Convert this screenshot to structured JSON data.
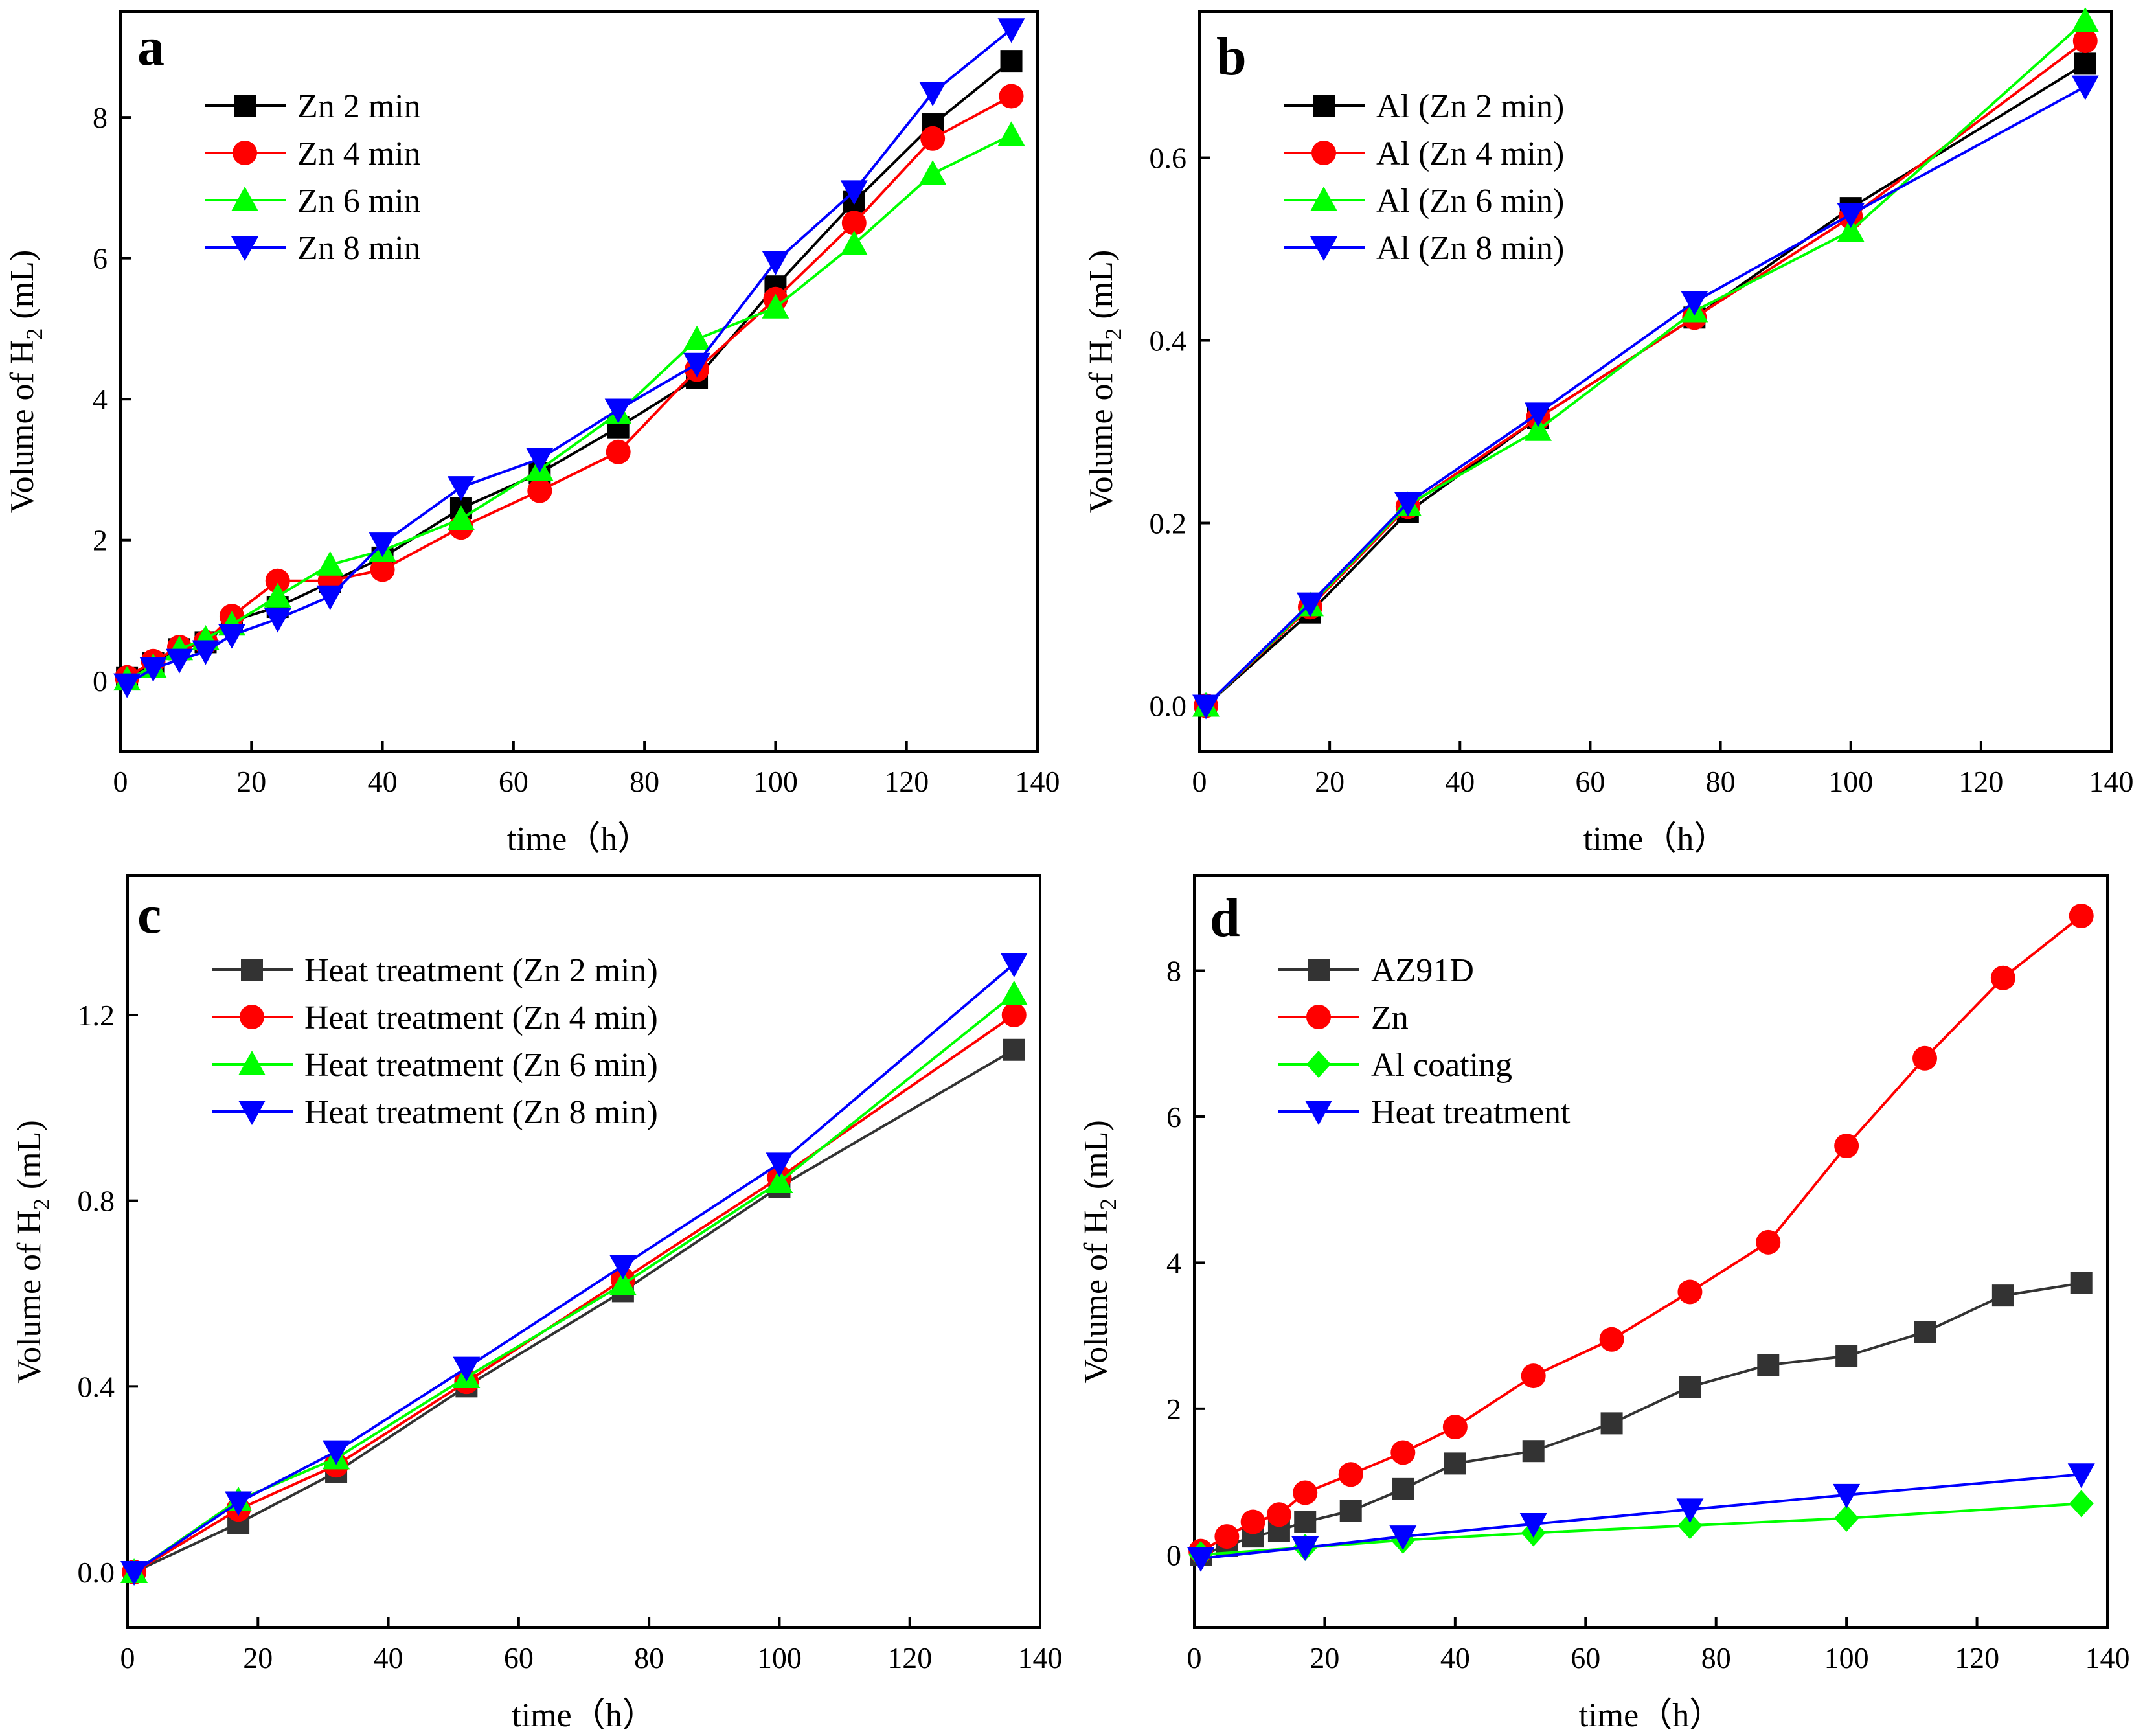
{
  "chart_data": [
    {
      "type": "line",
      "panel": "a",
      "xlabel": "time（h）",
      "ylabel": "Volume of H",
      "ylabel_sub": "2",
      "ylabel_suffix": "(mL)",
      "xlim": [
        0,
        140
      ],
      "ylim": [
        -1,
        9.5
      ],
      "xticks": [
        0,
        20,
        40,
        60,
        80,
        100,
        120,
        140
      ],
      "yticks": [
        0,
        2,
        4,
        6,
        8
      ],
      "ytick_labels": [
        "0",
        "2",
        "4",
        "6",
        "8"
      ],
      "legend_position": "top-left",
      "series": [
        {
          "name": "Zn 2 min",
          "color": "#000000",
          "marker": "square",
          "x": [
            1,
            5,
            9,
            13,
            17,
            24,
            32,
            40,
            52,
            64,
            76,
            88,
            100,
            112,
            124,
            136
          ],
          "y": [
            0.05,
            0.25,
            0.45,
            0.55,
            0.85,
            1.05,
            1.4,
            1.75,
            2.45,
            2.95,
            3.6,
            4.3,
            5.6,
            6.8,
            7.9,
            8.8
          ]
        },
        {
          "name": "Zn 4 min",
          "color": "#ff0000",
          "marker": "circle",
          "x": [
            1,
            5,
            9,
            13,
            17,
            24,
            32,
            40,
            52,
            64,
            76,
            88,
            100,
            112,
            124,
            136
          ],
          "y": [
            0.05,
            0.28,
            0.48,
            0.55,
            0.92,
            1.42,
            1.42,
            1.58,
            2.18,
            2.7,
            3.25,
            4.42,
            5.42,
            6.5,
            7.7,
            8.3
          ]
        },
        {
          "name": "Zn 6 min",
          "color": "#00ff00",
          "marker": "triangle-up",
          "x": [
            1,
            5,
            9,
            13,
            17,
            24,
            32,
            40,
            52,
            64,
            76,
            88,
            100,
            112,
            124,
            136
          ],
          "y": [
            0.02,
            0.2,
            0.45,
            0.6,
            0.8,
            1.2,
            1.65,
            1.85,
            2.3,
            3.0,
            3.8,
            4.85,
            5.3,
            6.2,
            7.2,
            7.75
          ]
        },
        {
          "name": "Zn 8 min",
          "color": "#0000ff",
          "marker": "triangle-down",
          "x": [
            1,
            5,
            9,
            13,
            17,
            24,
            32,
            40,
            52,
            64,
            76,
            88,
            100,
            112,
            124,
            136
          ],
          "y": [
            -0.05,
            0.18,
            0.3,
            0.42,
            0.65,
            0.88,
            1.2,
            1.95,
            2.75,
            3.15,
            3.85,
            4.5,
            5.95,
            6.95,
            8.35,
            9.25
          ]
        }
      ]
    },
    {
      "type": "line",
      "panel": "b",
      "xlabel": "time（h）",
      "ylabel": "Volume of H",
      "ylabel_sub": "2",
      "ylabel_suffix": "(mL)",
      "xlim": [
        0,
        140
      ],
      "ylim": [
        -0.05,
        0.76
      ],
      "xticks": [
        0,
        20,
        40,
        60,
        80,
        100,
        120,
        140
      ],
      "yticks": [
        0,
        0.2,
        0.4,
        0.6
      ],
      "ytick_labels": [
        "0.0",
        "0.2",
        "0.4",
        "0.6"
      ],
      "legend_position": "top-left",
      "series": [
        {
          "name": "Al (Zn 2 min)",
          "color": "#000000",
          "marker": "square",
          "x": [
            1,
            17,
            32,
            52,
            76,
            100,
            136
          ],
          "y": [
            0.0,
            0.102,
            0.212,
            0.315,
            0.425,
            0.545,
            0.703
          ]
        },
        {
          "name": "Al (Zn 4 min)",
          "color": "#ff0000",
          "marker": "circle",
          "x": [
            1,
            17,
            32,
            52,
            76,
            100,
            136
          ],
          "y": [
            0.0,
            0.108,
            0.218,
            0.315,
            0.425,
            0.535,
            0.728
          ]
        },
        {
          "name": "Al (Zn 6 min)",
          "color": "#00ff00",
          "marker": "triangle-up",
          "x": [
            1,
            17,
            32,
            52,
            76,
            100,
            136
          ],
          "y": [
            0.0,
            0.11,
            0.22,
            0.302,
            0.432,
            0.52,
            0.75
          ]
        },
        {
          "name": "Al (Zn 8 min)",
          "color": "#0000ff",
          "marker": "triangle-down",
          "x": [
            1,
            17,
            32,
            52,
            76,
            100,
            136
          ],
          "y": [
            0.0,
            0.112,
            0.222,
            0.32,
            0.442,
            0.538,
            0.678
          ]
        }
      ]
    },
    {
      "type": "line",
      "panel": "c",
      "xlabel": "time（h）",
      "ylabel": "Volume of H",
      "ylabel_sub": "2",
      "ylabel_suffix": "(mL)",
      "xlim": [
        0,
        140
      ],
      "ylim": [
        -0.12,
        1.5
      ],
      "xticks": [
        0,
        20,
        40,
        60,
        80,
        100,
        120,
        140
      ],
      "yticks": [
        0,
        0.4,
        0.8,
        1.2
      ],
      "ytick_labels": [
        "0.0",
        "0.4",
        "0.8",
        "1.2"
      ],
      "legend_position": "top-left",
      "series": [
        {
          "name": "Heat treatment (Zn 2 min)",
          "color": "#333333",
          "marker": "square",
          "x": [
            1,
            17,
            32,
            52,
            76,
            100,
            136
          ],
          "y": [
            0.0,
            0.105,
            0.215,
            0.4,
            0.605,
            0.83,
            1.125
          ]
        },
        {
          "name": "Heat treatment (Zn 4 min)",
          "color": "#ff0000",
          "marker": "circle",
          "x": [
            1,
            17,
            32,
            52,
            76,
            100,
            136
          ],
          "y": [
            0.0,
            0.135,
            0.23,
            0.41,
            0.63,
            0.85,
            1.2
          ]
        },
        {
          "name": "Heat treatment (Zn 6 min)",
          "color": "#00ff00",
          "marker": "triangle-up",
          "x": [
            1,
            17,
            32,
            52,
            76,
            100,
            136
          ],
          "y": [
            0.0,
            0.155,
            0.245,
            0.42,
            0.62,
            0.84,
            1.245
          ]
        },
        {
          "name": "Heat treatment (Zn 8 min)",
          "color": "#0000ff",
          "marker": "triangle-down",
          "x": [
            1,
            17,
            32,
            52,
            76,
            100,
            136
          ],
          "y": [
            0.0,
            0.15,
            0.26,
            0.44,
            0.66,
            0.88,
            1.31
          ]
        }
      ]
    },
    {
      "type": "line",
      "panel": "d",
      "xlabel": "time（h）",
      "ylabel": "Volume of H",
      "ylabel_sub": "2",
      "ylabel_suffix": "(mL)",
      "xlim": [
        0,
        140
      ],
      "ylim": [
        -1,
        9.3
      ],
      "xticks": [
        0,
        20,
        40,
        60,
        80,
        100,
        120,
        140
      ],
      "yticks": [
        0,
        2,
        4,
        6,
        8
      ],
      "ytick_labels": [
        "0",
        "2",
        "4",
        "6",
        "8"
      ],
      "legend_position": "top-left",
      "series": [
        {
          "name": "AZ91D",
          "color": "#333333",
          "marker": "square",
          "x": [
            1,
            5,
            9,
            13,
            17,
            24,
            32,
            40,
            52,
            64,
            76,
            88,
            100,
            112,
            124,
            136
          ],
          "y": [
            0.0,
            0.12,
            0.25,
            0.33,
            0.45,
            0.6,
            0.9,
            1.25,
            1.42,
            1.8,
            2.3,
            2.6,
            2.72,
            3.05,
            3.55,
            3.72
          ]
        },
        {
          "name": "Zn",
          "color": "#ff0000",
          "marker": "circle",
          "x": [
            1,
            5,
            9,
            13,
            17,
            24,
            32,
            40,
            52,
            64,
            76,
            88,
            100,
            112,
            124,
            136
          ],
          "y": [
            0.05,
            0.25,
            0.45,
            0.55,
            0.85,
            1.1,
            1.4,
            1.75,
            2.45,
            2.95,
            3.6,
            4.28,
            5.6,
            6.8,
            7.9,
            8.75
          ]
        },
        {
          "name": "Al coating",
          "color": "#00ff00",
          "marker": "diamond",
          "x": [
            1,
            17,
            32,
            52,
            76,
            100,
            136
          ],
          "y": [
            0.0,
            0.1,
            0.2,
            0.3,
            0.4,
            0.5,
            0.7
          ]
        },
        {
          "name": "Heat treatment",
          "color": "#0000ff",
          "marker": "triangle-down",
          "x": [
            1,
            17,
            32,
            52,
            76,
            100,
            136
          ],
          "y": [
            -0.05,
            0.1,
            0.25,
            0.42,
            0.62,
            0.82,
            1.1
          ]
        }
      ]
    }
  ]
}
